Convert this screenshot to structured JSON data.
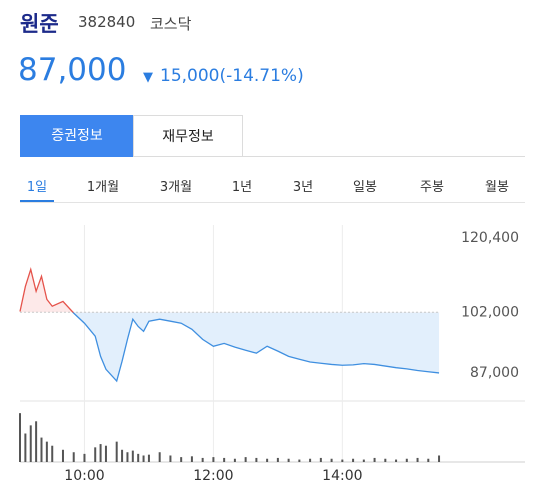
{
  "header": {
    "name": "원준",
    "code": "382840",
    "market": "코스닥",
    "price": "87,000",
    "change": "15,000(-14.71%)"
  },
  "tabs": [
    "증권정보",
    "재무정보"
  ],
  "periods": [
    "1일",
    "1개월",
    "3개월",
    "1년",
    "3년",
    "일봉",
    "주봉",
    "월봉"
  ],
  "chart_data": {
    "type": "line",
    "x": [
      "09:00",
      "09:05",
      "09:10",
      "09:15",
      "09:20",
      "09:25",
      "09:30",
      "09:40",
      "09:50",
      "10:00",
      "10:10",
      "10:15",
      "10:20",
      "10:30",
      "10:35",
      "10:40",
      "10:45",
      "10:50",
      "10:55",
      "11:00",
      "11:10",
      "11:20",
      "11:30",
      "11:40",
      "11:50",
      "12:00",
      "12:10",
      "12:20",
      "12:30",
      "12:40",
      "12:50",
      "13:00",
      "13:10",
      "13:20",
      "13:30",
      "13:40",
      "13:50",
      "14:00",
      "14:10",
      "14:20",
      "14:30",
      "14:40",
      "14:50",
      "15:00",
      "15:10",
      "15:20",
      "15:30"
    ],
    "series": [
      {
        "name": "price",
        "values": [
          102200,
          108400,
          112600,
          107200,
          110900,
          105200,
          103500,
          104700,
          101800,
          99300,
          96100,
          91100,
          87900,
          85000,
          89900,
          95300,
          100300,
          98500,
          97300,
          99800,
          100300,
          99800,
          99300,
          97800,
          95300,
          93600,
          94300,
          93400,
          92600,
          91900,
          93600,
          92400,
          91100,
          90400,
          89700,
          89400,
          89100,
          88900,
          89000,
          89300,
          89100,
          88700,
          88300,
          88000,
          87600,
          87300,
          87000
        ]
      },
      {
        "name": "volume",
        "values": [
          60,
          35,
          45,
          50,
          30,
          25,
          20,
          15,
          12,
          10,
          18,
          22,
          20,
          25,
          15,
          12,
          14,
          10,
          8,
          9,
          12,
          8,
          6,
          7,
          5,
          6,
          5,
          4,
          6,
          5,
          4,
          5,
          4,
          3,
          4,
          5,
          4,
          3,
          4,
          3,
          5,
          4,
          3,
          4,
          5,
          4,
          8
        ]
      }
    ],
    "xlim": [
      "09:00",
      "16:50"
    ],
    "xticks": [
      "10:00",
      "12:00",
      "14:00"
    ],
    "ylim": [
      80800,
      123600
    ],
    "yticks": [
      {
        "value": 120400,
        "label": "120,400"
      },
      {
        "value": 102000,
        "label": "102,000"
      },
      {
        "value": 87000,
        "label": "87,000"
      }
    ],
    "volume_ylim": [
      0,
      70
    ],
    "baseline": 102000,
    "colors": {
      "up": "#e5534b",
      "down": "#3f8fe0",
      "up_fill": "#fde9e9",
      "down_fill": "#e2effc",
      "volume": "#555555"
    }
  }
}
